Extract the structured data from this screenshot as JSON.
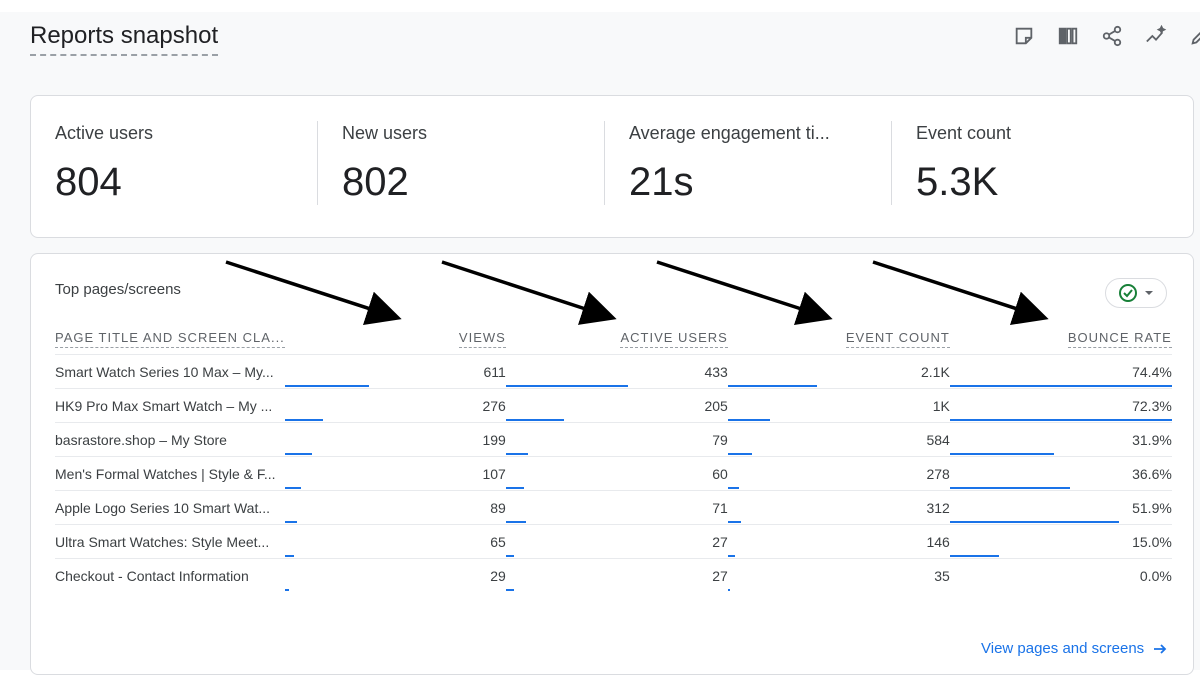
{
  "page": {
    "title": "Reports snapshot"
  },
  "toolbar": {
    "icons": [
      "note-icon",
      "compare-icon",
      "share-icon",
      "insights-icon",
      "edit-icon"
    ]
  },
  "metrics": [
    {
      "label": "Active users",
      "value": "804"
    },
    {
      "label": "New users",
      "value": "802"
    },
    {
      "label": "Average engagement ti...",
      "value": "21s"
    },
    {
      "label": "Event count",
      "value": "5.3K"
    }
  ],
  "table_card": {
    "title": "Top pages/screens",
    "columns": [
      "PAGE TITLE AND SCREEN CLA...",
      "VIEWS",
      "ACTIVE USERS",
      "EVENT COUNT",
      "BOUNCE RATE"
    ],
    "rows": [
      {
        "title": "Smart Watch Series 10 Max – My...",
        "views": "611",
        "active_users": "433",
        "event_count": "2.1K",
        "bounce_rate": "74.4%",
        "bars": [
          0.38,
          0.55,
          0.4,
          1.0
        ]
      },
      {
        "title": "HK9 Pro Max Smart Watch – My ...",
        "views": "276",
        "active_users": "205",
        "event_count": "1K",
        "bounce_rate": "72.3%",
        "bars": [
          0.17,
          0.26,
          0.19,
          1.0
        ]
      },
      {
        "title": "basrastore.shop – My Store",
        "views": "199",
        "active_users": "79",
        "event_count": "584",
        "bounce_rate": "31.9%",
        "bars": [
          0.12,
          0.1,
          0.11,
          0.47
        ]
      },
      {
        "title": "Men's Formal Watches | Style & F...",
        "views": "107",
        "active_users": "60",
        "event_count": "278",
        "bounce_rate": "36.6%",
        "bars": [
          0.07,
          0.08,
          0.05,
          0.54
        ]
      },
      {
        "title": "Apple Logo Series 10 Smart Wat...",
        "views": "89",
        "active_users": "71",
        "event_count": "312",
        "bounce_rate": "51.9%",
        "bars": [
          0.055,
          0.09,
          0.06,
          0.76
        ]
      },
      {
        "title": "Ultra Smart Watches: Style Meet...",
        "views": "65",
        "active_users": "27",
        "event_count": "146",
        "bounce_rate": "15.0%",
        "bars": [
          0.04,
          0.035,
          0.03,
          0.22
        ]
      },
      {
        "title": "Checkout - Contact Information",
        "views": "29",
        "active_users": "27",
        "event_count": "35",
        "bounce_rate": "0.0%",
        "bars": [
          0.018,
          0.035,
          0.007,
          0.0
        ]
      }
    ],
    "view_link": "View pages and screens",
    "accent": "#1a73e8",
    "check_color": "#188038"
  }
}
